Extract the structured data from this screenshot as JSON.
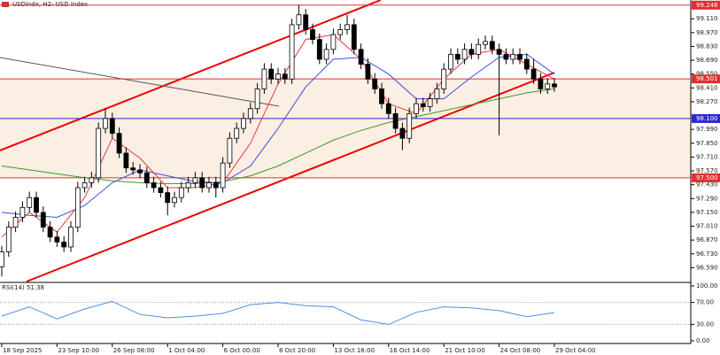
{
  "chart_data": {
    "type": "candlestick",
    "title": "USDindx, H2:  USD Index",
    "categories": [
      "18 Sep 2025",
      null,
      null,
      null,
      null,
      null,
      null,
      null,
      "23 Sep 10:00",
      null,
      null,
      null,
      null,
      null,
      null,
      null,
      "26 Sep 08:00",
      null,
      null,
      null,
      null,
      null,
      null,
      null,
      "1 Oct 04:00",
      null,
      null,
      null,
      null,
      null,
      null,
      null,
      "6 Oct 00:00",
      null,
      null,
      null,
      null,
      null,
      null,
      null,
      "8 Oct 20:00",
      null,
      null,
      null,
      null,
      null,
      null,
      null,
      "13 Oct 16:00",
      null,
      null,
      null,
      null,
      null,
      null,
      null,
      "16 Oct 14:00",
      null,
      null,
      null,
      null,
      null,
      null,
      null,
      "21 Oct 10:00",
      null,
      null,
      null,
      null,
      null,
      null,
      null,
      "24 Oct 08:00",
      null,
      null,
      null,
      null,
      null,
      null,
      null,
      "29 Oct 04:00"
    ],
    "open": [
      96.6,
      96.75,
      97.0,
      97.1,
      97.2,
      97.3,
      97.15,
      97.0,
      96.9,
      96.85,
      96.8,
      97.0,
      97.4,
      97.45,
      97.5,
      98.0,
      98.1,
      97.95,
      97.75,
      97.6,
      97.58,
      97.55,
      97.45,
      97.4,
      97.35,
      97.25,
      97.3,
      97.4,
      97.45,
      97.5,
      97.4,
      97.45,
      97.4,
      97.65,
      97.9,
      98.0,
      98.1,
      98.2,
      98.4,
      98.6,
      98.5,
      98.55,
      98.5,
      99.05,
      99.15,
      99.0,
      98.9,
      98.7,
      98.8,
      98.95,
      99.0,
      99.05,
      98.8,
      98.65,
      98.5,
      98.4,
      98.25,
      98.15,
      98.0,
      97.9,
      98.15,
      98.25,
      98.22,
      98.3,
      98.4,
      98.6,
      98.75,
      98.7,
      98.8,
      98.75,
      98.85,
      98.88,
      98.8,
      98.75,
      98.7,
      98.75,
      98.7,
      98.6,
      98.5,
      98.4,
      98.45
    ],
    "high": [
      96.81,
      97.06,
      97.16,
      97.26,
      97.36,
      97.36,
      97.21,
      97.06,
      96.96,
      96.91,
      97.06,
      97.46,
      97.51,
      97.56,
      98.06,
      98.2,
      98.16,
      98.01,
      97.81,
      97.66,
      97.64,
      97.61,
      97.51,
      97.46,
      97.41,
      97.36,
      97.46,
      97.51,
      97.56,
      97.56,
      97.51,
      97.51,
      97.71,
      97.96,
      98.06,
      98.16,
      98.26,
      98.46,
      98.66,
      98.66,
      98.61,
      98.61,
      99.11,
      99.25,
      99.21,
      99.06,
      98.96,
      98.86,
      99.01,
      99.06,
      99.15,
      99.11,
      98.86,
      98.71,
      98.56,
      98.46,
      98.31,
      98.21,
      98.06,
      98.21,
      98.31,
      98.31,
      98.36,
      98.46,
      98.66,
      98.81,
      98.81,
      98.86,
      98.86,
      98.91,
      98.94,
      98.94,
      98.86,
      98.81,
      98.81,
      98.81,
      98.76,
      98.7,
      98.56,
      98.51,
      98.51
    ],
    "low": [
      96.5,
      96.7,
      96.95,
      97.05,
      97.15,
      97.1,
      96.95,
      96.85,
      96.8,
      96.75,
      96.75,
      96.95,
      97.35,
      97.4,
      97.45,
      97.95,
      97.9,
      97.7,
      97.55,
      97.53,
      97.5,
      97.4,
      97.35,
      97.3,
      97.12,
      97.2,
      97.25,
      97.35,
      97.4,
      97.35,
      97.35,
      97.3,
      97.35,
      97.6,
      97.85,
      97.95,
      98.05,
      98.15,
      98.35,
      98.45,
      98.45,
      98.45,
      98.45,
      99.0,
      98.95,
      98.85,
      98.65,
      98.65,
      98.75,
      98.9,
      98.95,
      98.75,
      98.6,
      98.45,
      98.35,
      98.2,
      98.1,
      97.95,
      97.78,
      97.85,
      98.1,
      98.17,
      98.17,
      98.25,
      98.35,
      98.55,
      98.65,
      98.65,
      98.7,
      98.7,
      98.8,
      98.75,
      97.93,
      98.65,
      98.65,
      98.65,
      98.55,
      98.45,
      98.35,
      98.35,
      98.37
    ],
    "close": [
      96.75,
      97.0,
      97.1,
      97.2,
      97.3,
      97.15,
      97.0,
      96.9,
      96.85,
      96.8,
      97.0,
      97.4,
      97.45,
      97.5,
      98.0,
      98.1,
      97.95,
      97.75,
      97.6,
      97.58,
      97.55,
      97.45,
      97.4,
      97.35,
      97.25,
      97.3,
      97.4,
      97.45,
      97.5,
      97.4,
      97.45,
      97.4,
      97.65,
      97.9,
      98.0,
      98.1,
      98.2,
      98.4,
      98.6,
      98.5,
      98.55,
      98.5,
      99.05,
      99.15,
      99.0,
      98.9,
      98.7,
      98.8,
      98.95,
      99.0,
      99.05,
      98.8,
      98.65,
      98.5,
      98.4,
      98.25,
      98.15,
      98.0,
      97.9,
      98.15,
      98.25,
      98.22,
      98.3,
      98.4,
      98.6,
      98.75,
      98.7,
      98.8,
      98.75,
      98.85,
      98.88,
      98.8,
      98.75,
      98.7,
      98.75,
      98.7,
      98.6,
      98.5,
      98.4,
      98.45,
      98.42
    ],
    "lines": [
      {
        "color": "#3a9a2a",
        "x": [
          0,
          4,
          8,
          12,
          16,
          20,
          24,
          28,
          32,
          36,
          40,
          44,
          48,
          52,
          56,
          60,
          64,
          68,
          72,
          76,
          80
        ],
        "values": [
          97.62,
          97.58,
          97.54,
          97.5,
          97.47,
          97.45,
          97.44,
          97.44,
          97.46,
          97.52,
          97.62,
          97.75,
          97.88,
          97.98,
          98.06,
          98.12,
          98.18,
          98.24,
          98.3,
          98.36,
          98.4
        ]
      },
      {
        "color": "#3b4fd8",
        "x": [
          0,
          4,
          8,
          12,
          16,
          20,
          24,
          28,
          32,
          36,
          40,
          44,
          48,
          52,
          56,
          60,
          64,
          68,
          72,
          76,
          80
        ],
        "values": [
          97.15,
          97.12,
          97.1,
          97.22,
          97.45,
          97.58,
          97.52,
          97.46,
          97.45,
          97.62,
          98.0,
          98.42,
          98.7,
          98.72,
          98.55,
          98.3,
          98.3,
          98.52,
          98.72,
          98.75,
          98.55
        ]
      },
      {
        "color": "#e83a3a",
        "x": [
          0,
          4,
          8,
          12,
          16,
          20,
          24,
          28,
          32,
          36,
          40,
          44,
          48,
          52,
          56,
          60,
          64,
          68,
          72,
          76,
          80
        ],
        "values": [
          96.9,
          97.15,
          96.95,
          97.3,
          97.9,
          97.7,
          97.4,
          97.4,
          97.45,
          97.85,
          98.45,
          98.9,
          98.95,
          98.7,
          98.25,
          98.15,
          98.5,
          98.75,
          98.8,
          98.65,
          98.5
        ]
      }
    ],
    "ylim": [
      96.45,
      99.3
    ],
    "yticks": [
      {
        "value": 99.11,
        "label": "99.110"
      },
      {
        "value": 98.97,
        "label": "98.970"
      },
      {
        "value": 98.83,
        "label": "98.830"
      },
      {
        "value": 98.69,
        "label": "98.690"
      },
      {
        "value": 98.55,
        "label": "98.550"
      },
      {
        "value": 98.41,
        "label": "98.410"
      },
      {
        "value": 98.27,
        "label": "98.270"
      },
      {
        "value": 97.99,
        "label": "97.990"
      },
      {
        "value": 97.85,
        "label": "97.850"
      },
      {
        "value": 97.71,
        "label": "97.710"
      },
      {
        "value": 97.57,
        "label": "97.570"
      },
      {
        "value": 97.43,
        "label": "97.430"
      },
      {
        "value": 97.29,
        "label": "97.290"
      },
      {
        "value": 97.15,
        "label": "97.150"
      },
      {
        "value": 97.01,
        "label": "97.010"
      },
      {
        "value": 96.87,
        "label": "96.870"
      },
      {
        "value": 96.73,
        "label": "96.730"
      },
      {
        "value": 96.59,
        "label": "96.590"
      }
    ],
    "levels": [
      {
        "value": 99.248,
        "label": "99.248",
        "color": "#e03030"
      },
      {
        "value": 98.501,
        "label": "98.501",
        "color": "#e03030"
      },
      {
        "value": 98.1,
        "label": "98.100",
        "color": "#2a2ad0"
      },
      {
        "value": 97.5,
        "label": "97.500",
        "color": "#e03030"
      }
    ],
    "zone_color": "#fbeee3",
    "rsi": {
      "title": "RSI(14) 51.38",
      "color": "#4a90e2",
      "x": [
        0,
        4,
        8,
        12,
        16,
        20,
        24,
        28,
        32,
        36,
        40,
        44,
        48,
        52,
        56,
        60,
        64,
        68,
        72,
        76,
        80
      ],
      "values": [
        45,
        62,
        40,
        58,
        72,
        48,
        42,
        45,
        50,
        66,
        70,
        64,
        62,
        38,
        30,
        52,
        62,
        60,
        55,
        44,
        51.38
      ],
      "ylim": [
        0,
        100
      ],
      "yticks": [
        {
          "value": 100,
          "label": "100.00"
        },
        {
          "value": 70,
          "label": "70.00"
        },
        {
          "value": 30,
          "label": "30.00"
        },
        {
          "value": 0,
          "label": "0.00"
        }
      ]
    }
  }
}
